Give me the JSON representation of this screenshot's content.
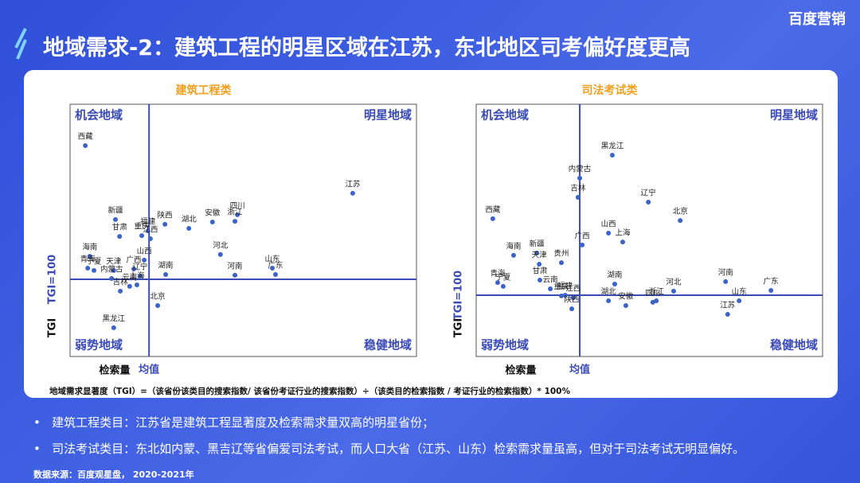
{
  "header": {
    "title": "地域需求-2：建筑工程的明星区域在江苏，东北地区司考偏好度更高",
    "logo": "百度营销"
  },
  "chart_data": [
    {
      "type": "scatter",
      "title": "建筑工程类",
      "color": "#3b63c9",
      "quadrants": [
        "机会地域",
        "明星地域",
        "弱势地域",
        "稳健地域"
      ],
      "x_label": "检索量",
      "x_ref_label": "均值",
      "y_label": "TGI",
      "y_ref_label": "TGI=100",
      "xlim": [
        0,
        100
      ],
      "ylim": [
        0,
        100
      ],
      "x_ref": 22.8,
      "y_ref": 30.6,
      "names": [
        "西藏",
        "新疆",
        "甘肃",
        "重庆",
        "福建",
        "江西",
        "陕西",
        "湖北",
        "安徽",
        "四川",
        "浙江",
        "江苏",
        "海南",
        "青海",
        "宁夏",
        "天津",
        "广西",
        "山西",
        "湖南",
        "河北",
        "内蒙古",
        "云南",
        "辽宁",
        "上海",
        "吉林",
        "北京",
        "山东",
        "广东",
        "河南",
        "黑龙江"
      ],
      "x": [
        4.4,
        13.1,
        14.3,
        20.7,
        22.5,
        23.2,
        27.4,
        34.3,
        41.1,
        48.3,
        47.6,
        81.6,
        5.7,
        5.1,
        6.9,
        12.6,
        18.4,
        21.4,
        27.6,
        43.4,
        12.0,
        17.2,
        20.2,
        19.3,
        14.5,
        25.3,
        58.4,
        59.3,
        47.6,
        12.6
      ],
      "y": [
        83.6,
        54.3,
        47.6,
        47.9,
        49.8,
        46.7,
        52.4,
        50.8,
        53.3,
        56.2,
        53.6,
        64.7,
        39.7,
        35.0,
        34.1,
        34.1,
        34.7,
        38.2,
        32.5,
        40.4,
        30.9,
        27.8,
        31.9,
        28.4,
        25.9,
        20.2,
        35.0,
        32.5,
        32.2,
        11.4
      ]
    },
    {
      "type": "scatter",
      "title": "司法考试类",
      "color": "#3b63c9",
      "quadrants": [
        "机会地域",
        "明星地域",
        "弱势地域",
        "稳健地域"
      ],
      "x_label": "检索量",
      "x_ref_label": "均值",
      "y_label": "TGI",
      "y_ref_label": "TGI=100",
      "xlim": [
        0,
        100
      ],
      "ylim": [
        0,
        100
      ],
      "x_ref": 29.9,
      "y_ref": 24.3,
      "names": [
        "黑龙江",
        "内蒙古",
        "吉林",
        "辽宁",
        "北京",
        "西藏",
        "山西",
        "上海",
        "广西",
        "海南",
        "新疆",
        "天津",
        "贵州",
        "青海",
        "宁夏",
        "甘肃",
        "云南",
        "湖南",
        "福建",
        "湖北",
        "重庆",
        "江西",
        "陕西",
        "安徽",
        "浙江",
        "四川",
        "河北",
        "河南",
        "山东",
        "江苏",
        "广东"
      ],
      "x": [
        39.3,
        29.9,
        29.4,
        49.7,
        58.9,
        4.8,
        38.2,
        42.3,
        30.6,
        10.8,
        17.5,
        18.2,
        24.6,
        6.2,
        7.8,
        18.4,
        21.4,
        40.0,
        25.7,
        38.2,
        24.6,
        28.0,
        27.6,
        43.2,
        52.0,
        51.0,
        57.0,
        72.0,
        75.9,
        72.6,
        85.1
      ],
      "y": [
        79.8,
        70.7,
        63.1,
        61.2,
        53.9,
        54.6,
        48.9,
        45.4,
        44.2,
        40.1,
        41.0,
        36.6,
        37.2,
        29.3,
        27.8,
        30.3,
        26.8,
        28.7,
        24.3,
        22.1,
        24.0,
        23.3,
        18.9,
        20.2,
        22.1,
        21.5,
        25.9,
        29.7,
        22.1,
        16.7,
        26.2
      ]
    }
  ],
  "formula": "地域需求显著度（TGI）=（该省份该类目的搜索指数/ 该省份考证行业的搜索指数）÷（该类目的检索指数 / 考证行业的检索指数）* 100%",
  "bullets": [
    "建筑工程类目：江苏省是建筑工程显著度及检索需求量双高的明星省份；",
    "司法考试类目：东北如内蒙、黑吉辽等省偏爱司法考试，而人口大省（江苏、山东）检索需求量虽高，但对于司法考试无明显偏好。"
  ],
  "source": "数据来源：百度观星盘， 2020-2021年"
}
